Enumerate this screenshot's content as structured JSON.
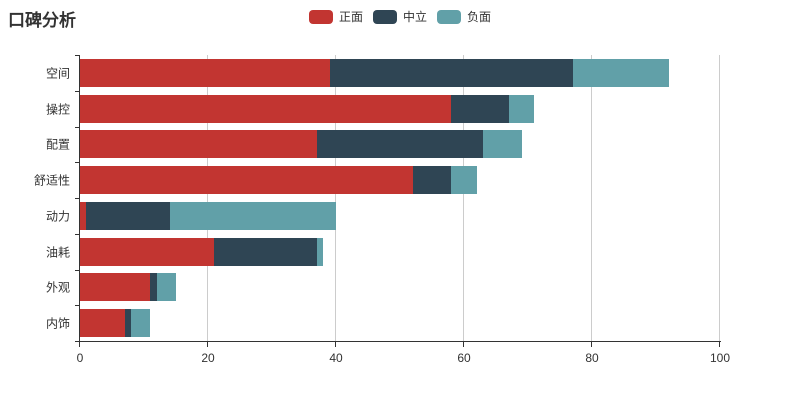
{
  "title": "口碑分析",
  "legend": [
    {
      "label": "正面",
      "color": "#c23531"
    },
    {
      "label": "中立",
      "color": "#2f4554"
    },
    {
      "label": "负面",
      "color": "#61a0a8"
    }
  ],
  "chart_data": {
    "type": "bar",
    "orientation": "horizontal",
    "stacked": true,
    "title": "口碑分析",
    "categories": [
      "空间",
      "操控",
      "配置",
      "舒适性",
      "动力",
      "油耗",
      "外观",
      "内饰"
    ],
    "series": [
      {
        "name": "正面",
        "color": "#c23531",
        "values": [
          39,
          58,
          37,
          52,
          1,
          21,
          11,
          7
        ]
      },
      {
        "name": "中立",
        "color": "#2f4554",
        "values": [
          38,
          9,
          26,
          6,
          13,
          16,
          1,
          1
        ]
      },
      {
        "name": "负面",
        "color": "#61a0a8",
        "values": [
          15,
          4,
          6,
          4,
          26,
          1,
          3,
          3
        ]
      }
    ],
    "stack_totals": [
      92,
      71,
      69,
      62,
      40,
      38,
      15,
      11
    ],
    "xlim": [
      0,
      100
    ],
    "xticks": [
      0,
      20,
      40,
      60,
      80,
      100
    ],
    "xlabel": "",
    "ylabel": "",
    "grid": true,
    "legend_position": "top-center",
    "axis_color": "#333333",
    "gridline_color": "#cccccc",
    "background": "#ffffff"
  }
}
